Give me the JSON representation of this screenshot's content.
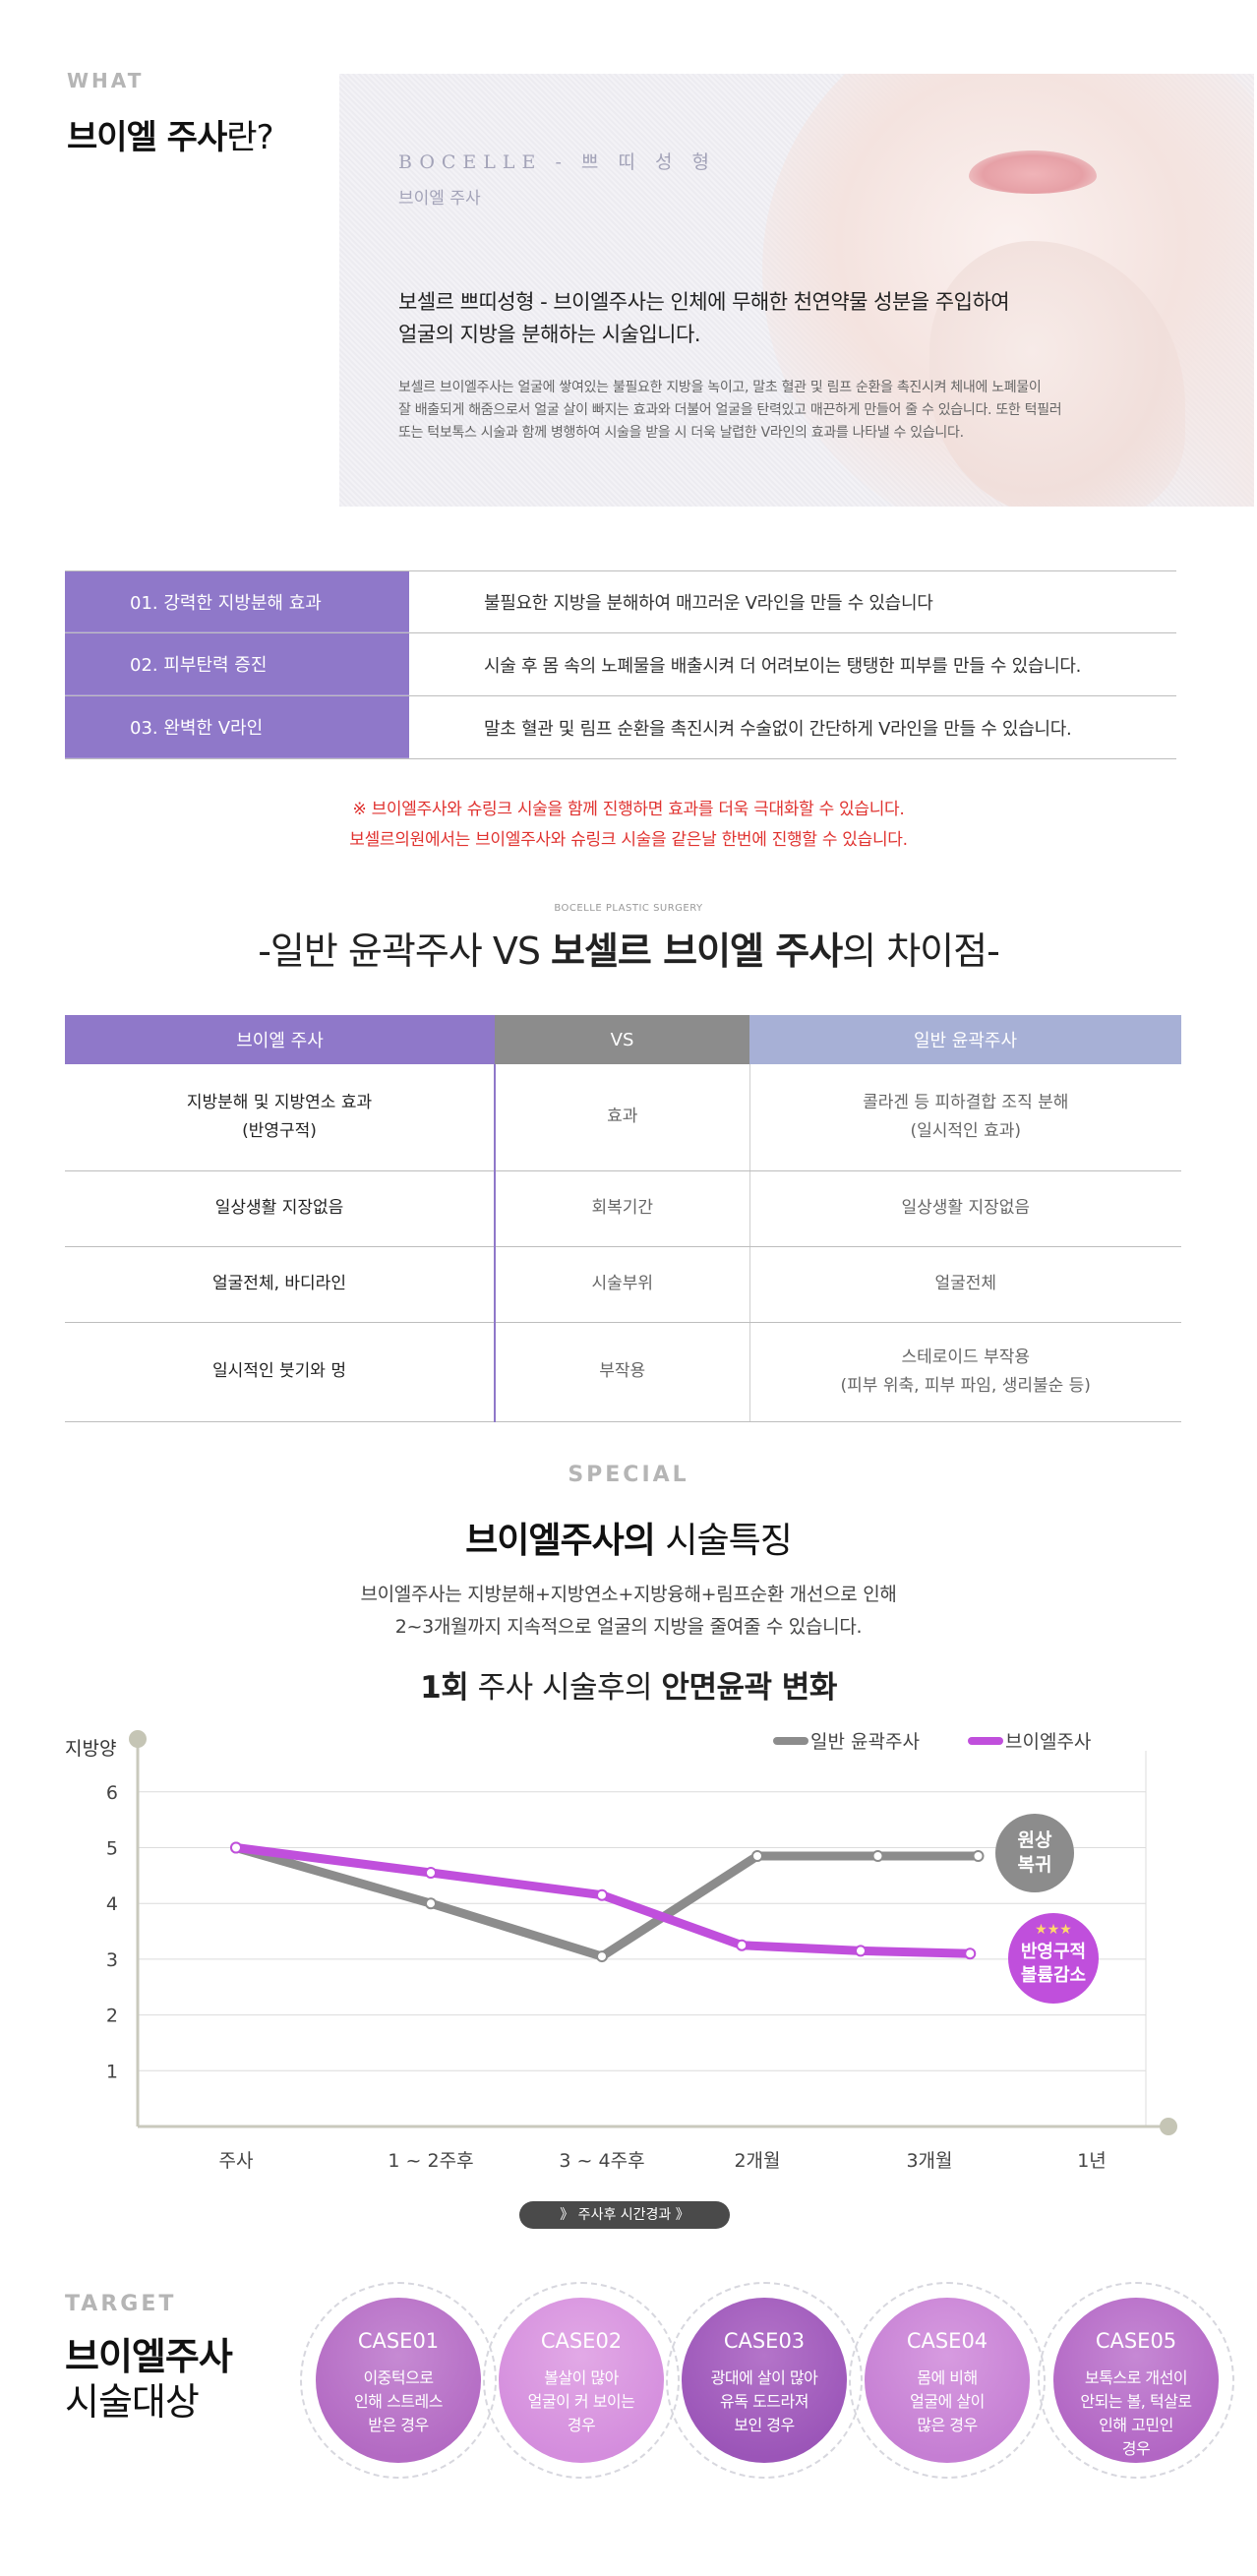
{
  "what": {
    "label": "WHAT",
    "title_bold": "브이엘 주사",
    "title_light": "란?",
    "kicker": "BOCELLE - 쁘 띠 성 형",
    "sub": "브이엘 주사",
    "headline_1": "보셀르 쁘띠성형 - 브이엘주사는 인체에 무해한 천연약물 성분을 주입하여",
    "headline_2": "얼굴의 지방을 분해하는 시술입니다.",
    "body_1": "보셀르 브이엘주사는 얼굴에 쌓여있는 불필요한 지방을 녹이고, 말초 혈관 및 림프 순환을 촉진시켜 체내에 노폐물이",
    "body_2": "잘 배출되게 해줌으로서 얼굴 살이 빠지는 효과와 더불어 얼굴을 탄력있고 매끈하게 만들어 줄 수 있습니다. 또한 턱필러",
    "body_3": "또는 턱보톡스 시술과 함께 병행하여 시술을 받을 시 더욱 날렵한 V라인의 효과를 나타낼 수 있습니다."
  },
  "benefits": [
    {
      "label": "01.  강력한 지방분해 효과",
      "desc": "불필요한 지방을 분해하여 매끄러운 V라인을 만들 수 있습니다"
    },
    {
      "label": "02.  피부탄력 증진",
      "desc": "시술 후 몸 속의 노폐물을 배출시켜 더 어려보이는 탱탱한 피부를 만들 수 있습니다."
    },
    {
      "label": "03.  완벽한 V라인",
      "desc": "말초 혈관 및 림프 순환을 촉진시켜 수술없이 간단하게 V라인을 만들 수 있습니다."
    }
  ],
  "notice": {
    "line_1": "※ 브이엘주사와 슈링크 시술을 함께 진행하면 효과를 더욱 극대화할 수 있습니다.",
    "line_2": "보셀르의원에서는 브이엘주사와 슈링크 시술을 같은날 한번에 진행할 수 있습니다."
  },
  "comparison": {
    "kicker": "BOCELLE PLASTIC SURGERY",
    "title_pre": "-일반 윤곽주사 VS ",
    "title_bold": "보셀르 브이엘 주사",
    "title_post": "의 차이점-",
    "headers": [
      "브이엘 주사",
      "VS",
      "일반 윤곽주사"
    ],
    "rows": [
      {
        "vl_1": "지방분해 및 지방연소 효과",
        "vl_2": "(반영구적)",
        "item": "효과",
        "other_1": "콜라겐 등 피하결합 조직 분해",
        "other_2": "(일시적인 효과)"
      },
      {
        "vl_1": "일상생활 지장없음",
        "vl_2": "",
        "item": "회복기간",
        "other_1": "일상생활 지장없음",
        "other_2": ""
      },
      {
        "vl_1": "얼굴전체, 바디라인",
        "vl_2": "",
        "item": "시술부위",
        "other_1": "얼굴전체",
        "other_2": ""
      },
      {
        "vl_1": "일시적인 붓기와 멍",
        "vl_2": "",
        "item": "부작용",
        "other_1": "스테로이드 부작용",
        "other_2": "(피부 위축, 피부 파임, 생리불순 등)"
      }
    ]
  },
  "special": {
    "label": "SPECIAL",
    "title_bold": "브이엘주사의",
    "title_light": " 시술특징",
    "desc_1": "브이엘주사는 지방분해+지방연소+지방융해+림프순환 개선으로 인해",
    "desc_2": "2~3개월까지 지속적으로 얼굴의 지방을 줄여줄 수 있습니다."
  },
  "chart_data": {
    "type": "line",
    "title_pre": "1회",
    "title_mid": " 주사 시술후의 ",
    "title_bold": "안면윤곽 변화",
    "ylabel": "지방양",
    "xlabel_pill": "》 주사후 시간경과 》",
    "categories": [
      "주사",
      "1 ~ 2주후",
      "3 ~ 4주후",
      "2개월",
      "3개월",
      "1년"
    ],
    "yticks": [
      "1",
      "2",
      "3",
      "4",
      "5",
      "6"
    ],
    "ylim": [
      0,
      6.8
    ],
    "legend_position": "top-right",
    "series": [
      {
        "name": "일반 윤곽주사",
        "color": "#8c8c8c",
        "x": [
          0,
          1,
          2,
          3,
          3.7,
          4.3
        ],
        "y": [
          5,
          4,
          3.05,
          4.85,
          4.85,
          4.85
        ],
        "end_label_1": "원상",
        "end_label_2": "복귀"
      },
      {
        "name": "브이엘주사",
        "color": "#c04fdc",
        "x": [
          0,
          1,
          2,
          2.9,
          3.6,
          4.25
        ],
        "y": [
          5,
          4.55,
          4.15,
          3.25,
          3.15,
          3.1
        ],
        "end_label_stars": "★★★",
        "end_label_1": "반영구적",
        "end_label_2": "볼륨감소"
      }
    ]
  },
  "target": {
    "label": "TARGET",
    "title_1": "브이엘주사",
    "title_2": "시술대상",
    "cases": [
      {
        "num": "CASE01",
        "d1": "이중턱으로",
        "d2": "인해 스트레스",
        "d3": "받은 경우",
        "d4": "",
        "color_a": "#b36ac3",
        "color_b": "#c68ad3"
      },
      {
        "num": "CASE02",
        "d1": "볼살이 많아",
        "d2": "얼굴이 커 보이는",
        "d3": "경우",
        "d4": "",
        "color_a": "#d48ddd",
        "color_b": "#e2a9e6"
      },
      {
        "num": "CASE03",
        "d1": "광대에 살이 많아",
        "d2": "유독 도드라져",
        "d3": "보인 경우",
        "d4": "",
        "color_a": "#9b55b8",
        "color_b": "#b474c9"
      },
      {
        "num": "CASE04",
        "d1": "몸에 비해",
        "d2": "얼굴에 살이",
        "d3": "많은 경우",
        "d4": "",
        "color_a": "#c57ed3",
        "color_b": "#d79be0"
      },
      {
        "num": "CASE05",
        "d1": "보톡스로 개선이",
        "d2": "안되는 볼, 턱살로",
        "d3": "인해 고민인",
        "d4": "경우",
        "color_a": "#b266c4",
        "color_b": "#c688d4"
      }
    ]
  }
}
